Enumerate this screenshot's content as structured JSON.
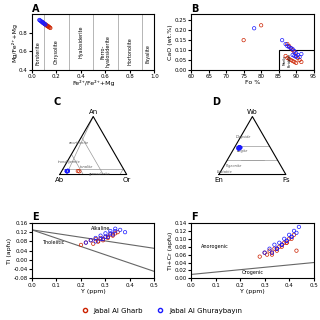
{
  "chart_data": [
    {
      "type": "scatter",
      "title": "A",
      "xlabel": "Fe²⁺/Fe²⁺+Mg",
      "ylabel": "Mg/Fe²⁺+Mg",
      "xlim": [
        0.0,
        1.0
      ],
      "ylim": [
        0.4,
        1.0
      ],
      "xticks": [
        0.0,
        0.2,
        0.4,
        0.6,
        0.8,
        1.0
      ],
      "yticks": [
        0.4,
        0.6,
        0.8
      ],
      "divisions": [
        0.1,
        0.3,
        0.5,
        0.7,
        0.9
      ],
      "annotations": [
        {
          "text": "Forsterite",
          "x": 0.05,
          "y": 0.58
        },
        {
          "text": "Chrysolite",
          "x": 0.2,
          "y": 0.6
        },
        {
          "text": "Hyalosiderite",
          "x": 0.4,
          "y": 0.7
        },
        {
          "text": "Ferro-\nhyalosiderite",
          "x": 0.6,
          "y": 0.6
        },
        {
          "text": "Hortonolite",
          "x": 0.8,
          "y": 0.6
        },
        {
          "text": "Fayalite",
          "x": 0.95,
          "y": 0.58
        }
      ],
      "series": [
        {
          "color": "#cc2200",
          "marker": "open circle",
          "x": [
            0.085,
            0.09,
            0.095,
            0.1,
            0.105,
            0.11,
            0.115,
            0.12,
            0.125,
            0.13,
            0.125,
            0.13,
            0.135,
            0.14,
            0.145,
            0.15
          ],
          "values": [
            0.915,
            0.91,
            0.905,
            0.9,
            0.895,
            0.89,
            0.885,
            0.88,
            0.875,
            0.87,
            0.878,
            0.873,
            0.868,
            0.863,
            0.858,
            0.853
          ]
        },
        {
          "color": "#1a1aff",
          "marker": "open circle",
          "x": [
            0.06,
            0.065,
            0.07,
            0.075,
            0.08,
            0.085,
            0.09,
            0.095,
            0.1,
            0.105,
            0.11
          ],
          "values": [
            0.94,
            0.935,
            0.93,
            0.925,
            0.92,
            0.915,
            0.91,
            0.905,
            0.9,
            0.895,
            0.89
          ]
        }
      ]
    },
    {
      "type": "scatter",
      "title": "B",
      "xlabel": "Fo %",
      "ylabel": "CaO (wt.%)",
      "xlim": [
        60,
        95
      ],
      "ylim": [
        0.0,
        0.28
      ],
      "xticks": [
        60,
        65,
        70,
        75,
        80,
        85,
        90,
        95
      ],
      "yticks": [
        {
          "value": 0.0,
          "label": "0.00"
        },
        0.05,
        {
          "value": 0.1,
          "label": "0.10"
        },
        0.15,
        {
          "value": 0.2,
          "label": "0.20"
        },
        0.25
      ],
      "regions": [
        {
          "x": [
            85,
            95
          ],
          "y": [
            0.0,
            0.1
          ],
          "label": "Mantle\nPeridotite",
          "label_x": 87.5,
          "label_y": 0.05
        }
      ],
      "series": [
        {
          "color": "#cc2200",
          "marker": "open circle",
          "x": [
            75.0,
            80.0,
            87.5,
            88.0,
            88.5,
            89.0,
            89.5,
            90.0,
            90.5,
            91.0,
            91.5,
            87.0,
            87.5,
            88.0,
            88.5,
            89.0,
            89.5,
            90.0
          ],
          "values": [
            0.15,
            0.225,
            0.13,
            0.12,
            0.11,
            0.1,
            0.09,
            0.07,
            0.06,
            0.05,
            0.04,
            0.07,
            0.06,
            0.055,
            0.05,
            0.045,
            0.04,
            0.035
          ]
        },
        {
          "color": "#1a1aff",
          "marker": "open circle",
          "x": [
            78.0,
            86.0,
            87.0,
            87.5,
            88.0,
            88.5,
            89.0,
            89.5,
            90.0,
            90.5,
            91.0,
            91.5,
            89.0,
            89.5,
            90.0
          ],
          "values": [
            0.21,
            0.15,
            0.13,
            0.12,
            0.115,
            0.11,
            0.105,
            0.095,
            0.085,
            0.075,
            0.065,
            0.08,
            0.075,
            0.07,
            0.065
          ]
        }
      ]
    },
    {
      "type": "ternary",
      "title": "C",
      "corners": [
        "An",
        "Ab",
        "Or"
      ],
      "legend": "lower center",
      "boundaries": [
        [
          [
            0.1,
            0.9,
            0.0
          ],
          [
            0.1,
            0.0,
            0.9
          ]
        ],
        [
          [
            0.65,
            0.35,
            0.0
          ],
          [
            0.0,
            0.35,
            0.65
          ]
        ],
        [
          [
            0.35,
            0.65,
            0.0
          ],
          [
            0.0,
            0.65,
            0.35
          ]
        ],
        [
          [
            1.0,
            0.0,
            0.0
          ],
          [
            0.0,
            0.9,
            0.1
          ]
        ],
        [
          [
            0.1,
            0.0,
            0.9
          ],
          [
            0.0,
            0.1,
            0.9
          ]
        ]
      ],
      "annotations": [
        {
          "text": "anorthosite",
          "position": [
            0.55,
            0.44,
            0.01
          ]
        },
        {
          "text": "trondhjemite",
          "position": [
            0.22,
            0.75,
            0.03
          ]
        },
        {
          "text": "tonalite",
          "position": [
            0.1,
            0.55,
            0.35
          ]
        },
        {
          "text": "granodiorite",
          "position": [
            0.05,
            0.38,
            0.57
          ]
        }
      ],
      "series": [
        {
          "name": "Jabal Al Gharb",
          "color": "#cc2200",
          "marker": "open circle",
          "An": [
            0.06,
            0.055
          ],
          "Ab": [
            0.7,
            0.68
          ],
          "Or": [
            0.24,
            0.265
          ]
        },
        {
          "name": "Jabal Al Ghuraybayın",
          "color": "#1a1aff",
          "marker": "open circle",
          "An": [
            0.06,
            0.055,
            0.06,
            0.065,
            0.055,
            0.06,
            0.058,
            0.062,
            0.057,
            0.059,
            0.061,
            0.063
          ],
          "Ab": [
            0.86,
            0.855,
            0.85,
            0.845,
            0.87,
            0.865,
            0.86,
            0.855,
            0.865,
            0.86,
            0.855,
            0.85
          ],
          "Or": [
            0.08,
            0.09,
            0.09,
            0.09,
            0.075,
            0.075,
            0.082,
            0.083,
            0.078,
            0.081,
            0.084,
            0.087
          ]
        }
      ]
    },
    {
      "type": "ternary",
      "title": "D",
      "corners": [
        "Wo",
        "En",
        "Fs"
      ],
      "boundaries": [
        [
          [
            0.25,
            0.75,
            0.0
          ],
          [
            0.25,
            0.0,
            0.75
          ]
        ],
        [
          [
            0.5,
            0.5,
            0.0
          ],
          [
            0.5,
            0.0,
            0.5
          ]
        ],
        [
          [
            0.25,
            0.55,
            0.2
          ],
          [
            0.25,
            0.2,
            0.55
          ]
        ]
      ],
      "annotations": [
        {
          "text": "Diopside",
          "position": [
            0.65,
            0.3,
            0.05
          ]
        },
        {
          "text": "Augite",
          "position": [
            0.4,
            0.45,
            0.15
          ]
        },
        {
          "text": "Pigeonite",
          "position": [
            0.15,
            0.7,
            0.15
          ]
        },
        {
          "text": "Enstatite",
          "position": [
            0.05,
            0.88,
            0.07
          ]
        }
      ],
      "series": [
        {
          "color": "#1a1aff",
          "marker": "circle",
          "Wo": [
            0.46,
            0.47,
            0.48,
            0.46,
            0.47,
            0.48,
            0.47,
            0.46,
            0.47,
            0.48
          ],
          "En": [
            0.48,
            0.47,
            0.46,
            0.47,
            0.46,
            0.45,
            0.47,
            0.48,
            0.46,
            0.47
          ],
          "Fs": [
            0.06,
            0.06,
            0.06,
            0.07,
            0.07,
            0.07,
            0.06,
            0.06,
            0.07,
            0.05
          ]
        }
      ]
    },
    {
      "type": "scatter",
      "title": "E",
      "xlabel": "Y (ppm)",
      "ylabel": "Ti (apfu)",
      "xlim": [
        0.0,
        0.5
      ],
      "ylim": [
        -0.08,
        0.16
      ],
      "xticks": [
        0.0,
        0.1,
        0.2,
        0.3,
        0.4,
        0.5
      ],
      "yticks": [
        -0.08,
        -0.04,
        {
          "value": 0.0,
          "label": "0.00"
        },
        0.04,
        0.08,
        0.12,
        0.16
      ],
      "lines": [
        {
          "x": [
            0.0,
            0.5
          ],
          "y": [
            0.13,
            0.05
          ]
        },
        {
          "x": [
            0.0,
            0.5
          ],
          "y": [
            0.13,
            -0.05
          ]
        }
      ],
      "annotations": [
        {
          "text": "Alkaline",
          "x": 0.28,
          "y": 0.135
        },
        {
          "text": "Tholeiitic",
          "x": 0.04,
          "y": 0.075
        }
      ],
      "series": [
        {
          "color": "#cc2200",
          "marker": "open circle",
          "x": [
            0.2,
            0.22,
            0.24,
            0.26,
            0.28,
            0.3,
            0.32,
            0.34,
            0.27,
            0.29,
            0.31,
            0.33,
            0.25,
            0.27,
            0.29,
            0.31,
            0.33,
            0.35
          ],
          "values": [
            0.065,
            0.075,
            0.085,
            0.09,
            0.095,
            0.1,
            0.11,
            0.115,
            0.08,
            0.085,
            0.095,
            0.105,
            0.07,
            0.08,
            0.09,
            0.1,
            0.11,
            0.12
          ]
        },
        {
          "color": "#1a1aff",
          "marker": "open circle",
          "x": [
            0.22,
            0.24,
            0.26,
            0.28,
            0.3,
            0.32,
            0.34,
            0.36,
            0.38,
            0.29,
            0.31,
            0.33,
            0.26,
            0.28,
            0.3,
            0.32,
            0.34
          ],
          "values": [
            0.075,
            0.085,
            0.095,
            0.105,
            0.115,
            0.125,
            0.135,
            0.13,
            0.12,
            0.09,
            0.1,
            0.11,
            0.08,
            0.09,
            0.1,
            0.115,
            0.125
          ]
        }
      ]
    },
    {
      "type": "scatter",
      "title": "F",
      "xlabel": "Y (ppm)",
      "ylabel": "Ti+Cr (apfu)",
      "xlim": [
        0.0,
        0.5
      ],
      "ylim": [
        0.0,
        0.14
      ],
      "xticks": [
        0.0,
        0.1,
        0.2,
        0.3,
        0.4,
        0.5
      ],
      "yticks": [
        {
          "value": 0.0,
          "label": "0.00"
        },
        0.02,
        0.04,
        0.06,
        0.08,
        {
          "value": 0.1,
          "label": "0.10"
        },
        0.12,
        0.14
      ],
      "lines": [
        {
          "x": [
            0.0,
            0.5
          ],
          "y": [
            0.01,
            0.04
          ]
        }
      ],
      "annotations": [
        {
          "text": "Anorogenic",
          "x": 0.04,
          "y": 0.08
        },
        {
          "text": "Orogenic",
          "x": 0.25,
          "y": 0.015
        }
      ],
      "series": [
        {
          "color": "#cc2200",
          "marker": "open circle",
          "x": [
            0.28,
            0.3,
            0.32,
            0.34,
            0.36,
            0.38,
            0.4,
            0.42,
            0.33,
            0.35,
            0.37,
            0.39,
            0.31,
            0.33,
            0.35,
            0.37,
            0.39,
            0.41,
            0.43
          ],
          "values": [
            0.055,
            0.065,
            0.07,
            0.075,
            0.08,
            0.09,
            0.1,
            0.11,
            0.06,
            0.07,
            0.08,
            0.09,
            0.06,
            0.065,
            0.075,
            0.085,
            0.09,
            0.1,
            0.07
          ]
        },
        {
          "color": "#1a1aff",
          "marker": "open circle",
          "x": [
            0.3,
            0.32,
            0.34,
            0.36,
            0.38,
            0.4,
            0.42,
            0.44,
            0.35,
            0.37,
            0.39,
            0.41,
            0.33,
            0.35,
            0.37,
            0.39,
            0.41,
            0.43
          ],
          "values": [
            0.065,
            0.075,
            0.085,
            0.09,
            0.1,
            0.11,
            0.12,
            0.13,
            0.075,
            0.085,
            0.095,
            0.105,
            0.065,
            0.075,
            0.085,
            0.095,
            0.105,
            0.115
          ]
        }
      ]
    }
  ]
}
